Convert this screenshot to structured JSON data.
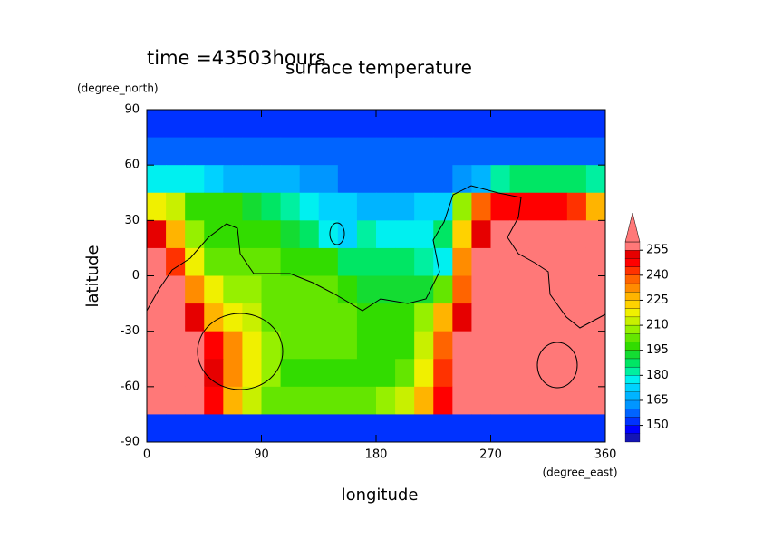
{
  "chart_data": {
    "type": "contour",
    "title": "surface temperature",
    "subtitle": "time =43503hours",
    "x_label": "longitude",
    "y_label": "latitude",
    "x_unit": "(degree_east)",
    "y_unit": "(degree_north)",
    "xlim": [
      0,
      360
    ],
    "ylim": [
      -90,
      90
    ],
    "xticks": [
      0,
      90,
      180,
      270,
      360
    ],
    "yticks": [
      -90,
      -60,
      -30,
      0,
      30,
      60,
      90
    ],
    "x": [
      7.5,
      22.5,
      37.5,
      52.5,
      67.5,
      82.5,
      97.5,
      112.5,
      127.5,
      142.5,
      157.5,
      172.5,
      187.5,
      202.5,
      217.5,
      232.5,
      247.5,
      262.5,
      277.5,
      292.5,
      307.5,
      322.5,
      337.5,
      352.5
    ],
    "y": [
      82.5,
      67.5,
      52.5,
      37.5,
      22.5,
      7.5,
      -7.5,
      -22.5,
      -37.5,
      -52.5,
      -67.5,
      -82.5
    ],
    "z": [
      [
        152,
        152,
        152,
        152,
        152,
        152,
        152,
        152,
        152,
        152,
        152,
        152,
        152,
        152,
        152,
        152,
        152,
        152,
        152,
        152,
        152,
        152,
        152,
        152
      ],
      [
        156,
        156,
        156,
        156,
        156,
        156,
        156,
        156,
        156,
        156,
        156,
        156,
        156,
        156,
        156,
        156,
        156,
        156,
        156,
        156,
        156,
        156,
        156,
        156
      ],
      [
        175,
        175,
        175,
        172,
        168,
        165,
        165,
        165,
        162,
        160,
        158,
        158,
        158,
        158,
        158,
        158,
        160,
        168,
        180,
        185,
        185,
        185,
        185,
        180
      ],
      [
        215,
        210,
        195,
        195,
        195,
        190,
        185,
        180,
        178,
        172,
        170,
        168,
        168,
        168,
        170,
        172,
        205,
        235,
        245,
        245,
        245,
        245,
        240,
        225
      ],
      [
        250,
        225,
        205,
        195,
        195,
        195,
        195,
        192,
        188,
        175,
        170,
        180,
        175,
        175,
        175,
        185,
        220,
        250,
        265,
        265,
        265,
        265,
        265,
        260
      ],
      [
        265,
        240,
        215,
        200,
        200,
        200,
        200,
        197,
        195,
        195,
        188,
        185,
        185,
        185,
        182,
        178,
        230,
        260,
        270,
        270,
        270,
        270,
        270,
        270
      ],
      [
        270,
        260,
        230,
        215,
        205,
        205,
        203,
        200,
        200,
        200,
        198,
        192,
        192,
        192,
        192,
        200,
        238,
        265,
        270,
        270,
        270,
        270,
        270,
        270
      ],
      [
        270,
        270,
        250,
        228,
        218,
        210,
        203,
        200,
        200,
        200,
        200,
        198,
        198,
        198,
        205,
        225,
        250,
        268,
        270,
        270,
        270,
        270,
        270,
        270
      ],
      [
        270,
        270,
        268,
        245,
        230,
        215,
        205,
        200,
        200,
        200,
        200,
        198,
        198,
        198,
        210,
        235,
        258,
        270,
        270,
        270,
        270,
        270,
        270,
        270
      ],
      [
        270,
        270,
        265,
        250,
        230,
        215,
        205,
        198,
        198,
        198,
        198,
        198,
        198,
        200,
        215,
        240,
        262,
        270,
        270,
        270,
        270,
        270,
        270,
        270
      ],
      [
        270,
        270,
        262,
        248,
        225,
        210,
        200,
        200,
        200,
        200,
        200,
        200,
        205,
        212,
        225,
        245,
        265,
        270,
        270,
        270,
        270,
        270,
        270,
        270
      ],
      [
        152,
        152,
        152,
        152,
        152,
        152,
        152,
        152,
        152,
        152,
        152,
        152,
        152,
        152,
        152,
        152,
        152,
        152,
        152,
        152,
        152,
        152,
        152,
        152
      ]
    ],
    "colorbar": {
      "levels": [
        140,
        145,
        150,
        155,
        160,
        165,
        170,
        175,
        180,
        185,
        190,
        195,
        200,
        205,
        210,
        215,
        220,
        225,
        230,
        235,
        240,
        245,
        250,
        255,
        260
      ],
      "colors": [
        "#1414b4",
        "#0000ff",
        "#0032ff",
        "#0064ff",
        "#0096ff",
        "#00b4ff",
        "#00d2ff",
        "#00f0f0",
        "#00f0a0",
        "#00e664",
        "#14dc32",
        "#32dc00",
        "#64e600",
        "#96f000",
        "#c8f000",
        "#f0f000",
        "#ffd200",
        "#ffb400",
        "#ff8c00",
        "#ff6400",
        "#ff3200",
        "#ff0000",
        "#e60000",
        "#ff7878"
      ],
      "extend_color": "#ff7878",
      "ticks": [
        150,
        165,
        180,
        195,
        210,
        225,
        240,
        255
      ]
    }
  }
}
